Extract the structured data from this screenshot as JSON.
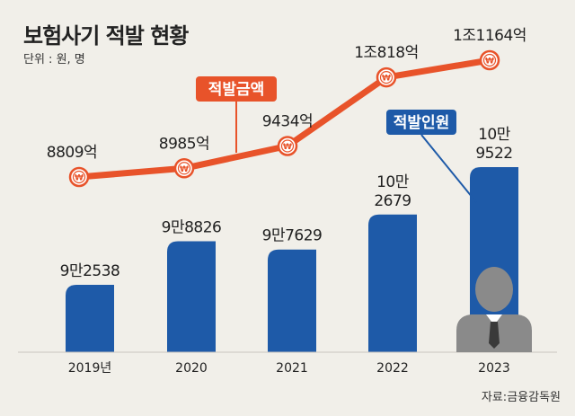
{
  "header": {
    "title": "보험사기 적발 현황",
    "unit": "단위 : 원, 명"
  },
  "footer": {
    "source": "자료:금융감독원"
  },
  "colors": {
    "background": "#f1efe9",
    "bar": "#1e5aa8",
    "line": "#e8532a",
    "person": "#8a8a8a"
  },
  "icons": {
    "marker": "won-coin-icon",
    "person": "person-silhouette-icon"
  },
  "chart_data": {
    "type": "bar",
    "categories": [
      "2019년",
      "2020",
      "2021",
      "2022",
      "2023"
    ],
    "series": [
      {
        "name": "적발인원",
        "type": "bar",
        "values": [
          92538,
          98826,
          97629,
          102679,
          109522
        ],
        "labels": [
          "9만2538",
          "9만8826",
          "9만7629",
          "10만\n2679",
          "10만\n9522"
        ]
      },
      {
        "name": "적발금액",
        "type": "line",
        "values": [
          8809,
          8985,
          9434,
          10818,
          11164
        ],
        "labels": [
          "8809억",
          "8985억",
          "9434억",
          "1조818억",
          "1조1164억"
        ]
      }
    ],
    "legend": [
      "적발금액",
      "적발인원"
    ],
    "grid": false
  }
}
